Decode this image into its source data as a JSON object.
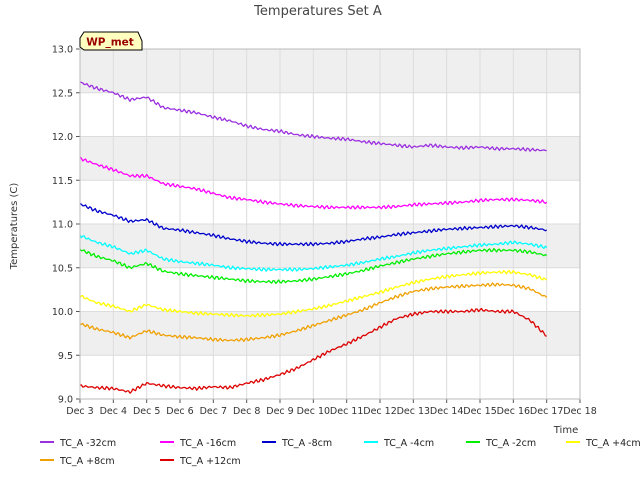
{
  "chart_data": {
    "type": "line",
    "title": "Temperatures Set A",
    "xlabel": "Time",
    "ylabel": "Temperatures (C)",
    "badge": "WP_met",
    "ylim": [
      9.0,
      13.0
    ],
    "yticks": [
      "9.0",
      "9.5",
      "10.0",
      "10.5",
      "11.0",
      "11.5",
      "12.0",
      "12.5",
      "13.0"
    ],
    "xlim": [
      3,
      18
    ],
    "xticks": [
      "Dec 3",
      "Dec 4",
      "Dec 5",
      "Dec 6",
      "Dec 7",
      "Dec 8",
      "Dec 9",
      "Dec 10",
      "Dec 11",
      "Dec 12",
      "Dec 13",
      "Dec 14",
      "Dec 15",
      "Dec 16",
      "Dec 17",
      "Dec 18"
    ],
    "grid": true,
    "legend": "bottom",
    "x": [
      3.0,
      3.5,
      4.0,
      4.5,
      5.0,
      5.5,
      6.0,
      6.5,
      7.0,
      7.5,
      8.0,
      8.5,
      9.0,
      9.5,
      10.0,
      10.5,
      11.0,
      11.5,
      12.0,
      12.5,
      13.0,
      13.5,
      14.0,
      14.5,
      15.0,
      15.5,
      16.0,
      16.5,
      17.0
    ],
    "series": [
      {
        "name": "TC_A -32cm",
        "color": "#9b30e0",
        "values": [
          12.62,
          12.55,
          12.5,
          12.42,
          12.45,
          12.33,
          12.3,
          12.27,
          12.22,
          12.18,
          12.12,
          12.08,
          12.06,
          12.02,
          12.0,
          11.98,
          11.97,
          11.94,
          11.92,
          11.9,
          11.88,
          11.9,
          11.88,
          11.87,
          11.88,
          11.86,
          11.86,
          11.85,
          11.84
        ]
      },
      {
        "name": "TC_A -16cm",
        "color": "#ff00ff",
        "values": [
          11.75,
          11.68,
          11.62,
          11.55,
          11.55,
          11.46,
          11.43,
          11.4,
          11.35,
          11.3,
          11.28,
          11.25,
          11.23,
          11.21,
          11.2,
          11.19,
          11.19,
          11.19,
          11.19,
          11.2,
          11.22,
          11.23,
          11.24,
          11.25,
          11.27,
          11.28,
          11.28,
          11.27,
          11.25
        ]
      },
      {
        "name": "TC_A -8cm",
        "color": "#0000cc",
        "values": [
          11.23,
          11.15,
          11.1,
          11.03,
          11.05,
          10.95,
          10.93,
          10.9,
          10.87,
          10.83,
          10.8,
          10.78,
          10.77,
          10.77,
          10.77,
          10.78,
          10.8,
          10.83,
          10.85,
          10.88,
          10.9,
          10.92,
          10.94,
          10.95,
          10.96,
          10.97,
          10.98,
          10.96,
          10.93
        ]
      },
      {
        "name": "TC_A -4cm",
        "color": "#00ffff",
        "values": [
          10.87,
          10.79,
          10.74,
          10.66,
          10.7,
          10.6,
          10.57,
          10.55,
          10.53,
          10.5,
          10.49,
          10.48,
          10.48,
          10.48,
          10.49,
          10.51,
          10.53,
          10.56,
          10.6,
          10.63,
          10.67,
          10.7,
          10.72,
          10.74,
          10.76,
          10.77,
          10.79,
          10.77,
          10.73
        ]
      },
      {
        "name": "TC_A -2cm",
        "color": "#00ee00",
        "values": [
          10.71,
          10.63,
          10.58,
          10.5,
          10.55,
          10.46,
          10.43,
          10.41,
          10.39,
          10.37,
          10.35,
          10.34,
          10.34,
          10.35,
          10.37,
          10.4,
          10.43,
          10.47,
          10.52,
          10.56,
          10.6,
          10.63,
          10.66,
          10.68,
          10.7,
          10.7,
          10.7,
          10.68,
          10.64
        ]
      },
      {
        "name": "TC_A +4cm",
        "color": "#ffff00",
        "values": [
          10.18,
          10.1,
          10.06,
          10.0,
          10.08,
          10.02,
          10.0,
          9.98,
          9.97,
          9.96,
          9.95,
          9.96,
          9.97,
          10.0,
          10.03,
          10.07,
          10.12,
          10.17,
          10.22,
          10.28,
          10.33,
          10.37,
          10.4,
          10.42,
          10.44,
          10.45,
          10.45,
          10.42,
          10.36
        ]
      },
      {
        "name": "TC_A +8cm",
        "color": "#f0a000",
        "values": [
          9.86,
          9.8,
          9.76,
          9.7,
          9.78,
          9.73,
          9.71,
          9.7,
          9.68,
          9.67,
          9.68,
          9.7,
          9.73,
          9.78,
          9.84,
          9.9,
          9.96,
          10.02,
          10.1,
          10.17,
          10.23,
          10.26,
          10.28,
          10.29,
          10.3,
          10.31,
          10.3,
          10.26,
          10.16
        ]
      },
      {
        "name": "TC_A +12cm",
        "color": "#dd0000",
        "values": [
          9.15,
          9.13,
          9.12,
          9.08,
          9.18,
          9.15,
          9.13,
          9.12,
          9.14,
          9.13,
          9.18,
          9.22,
          9.28,
          9.35,
          9.45,
          9.55,
          9.63,
          9.72,
          9.82,
          9.92,
          9.97,
          10.0,
          10.0,
          10.0,
          10.02,
          10.0,
          10.0,
          9.9,
          9.72
        ]
      }
    ]
  }
}
